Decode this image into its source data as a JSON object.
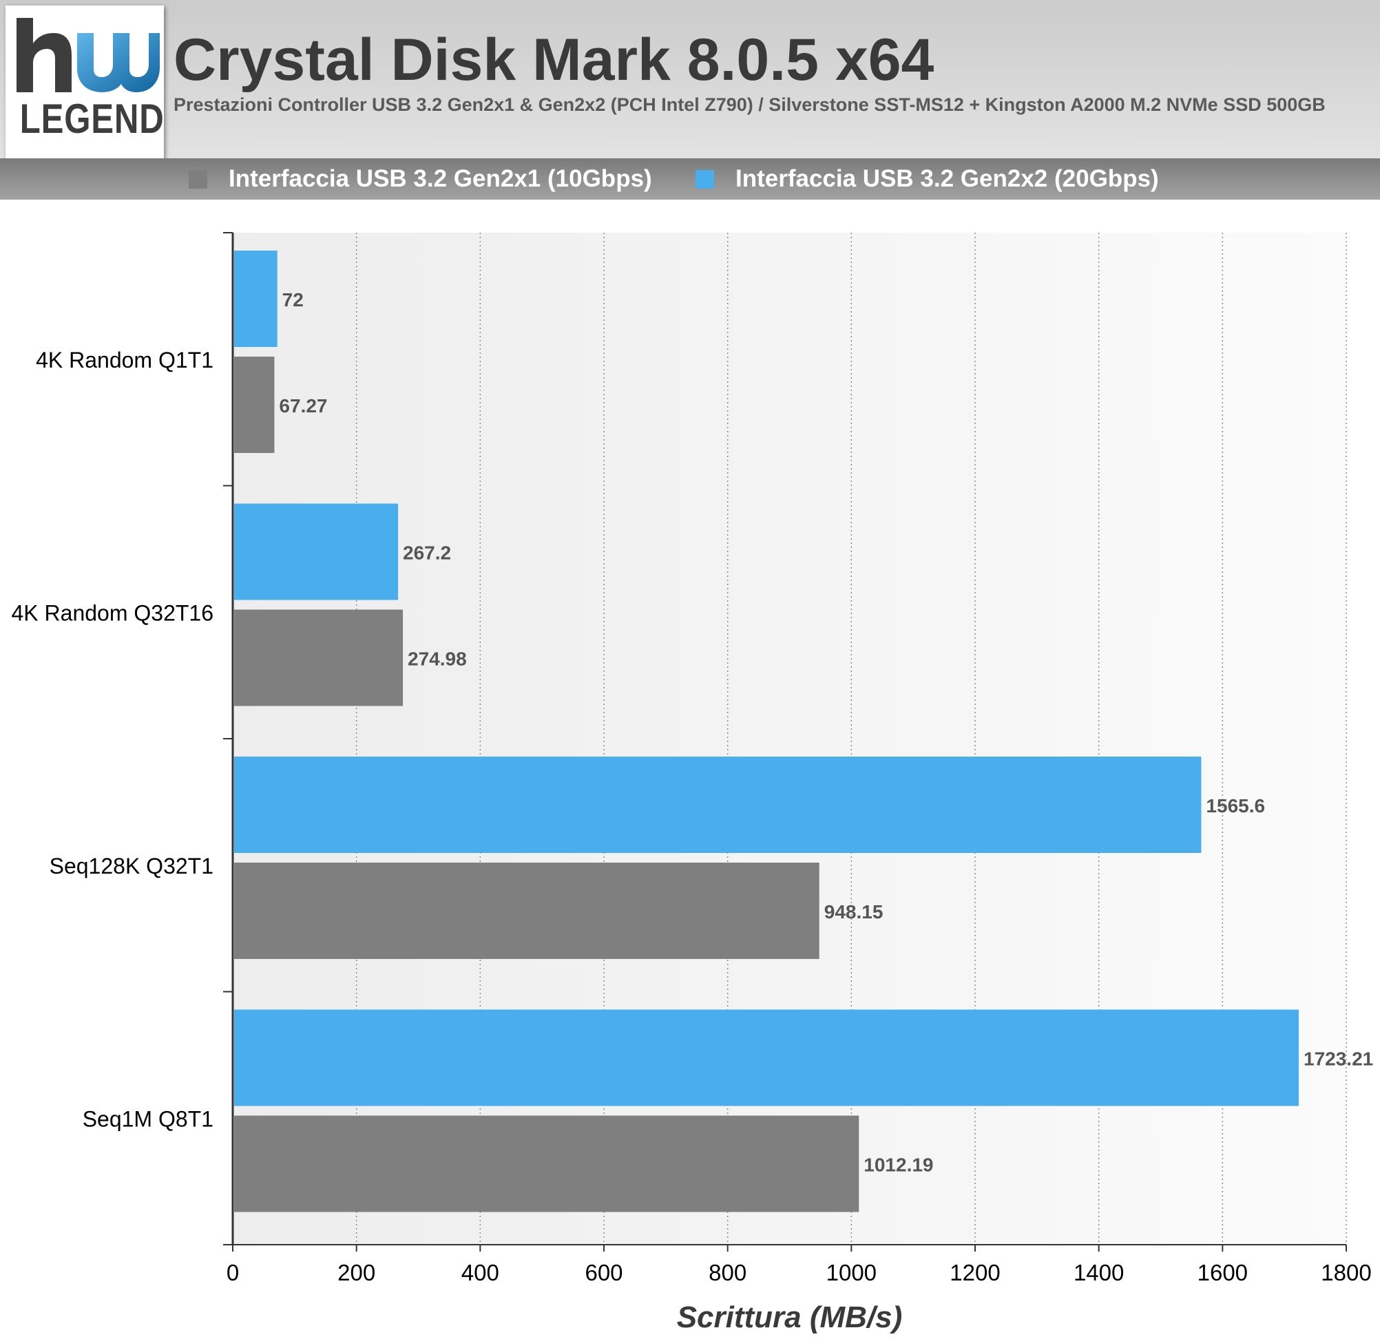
{
  "header": {
    "logo_text": "LEGEND",
    "title": "Crystal Disk Mark 8.0.5 x64",
    "subtitle": "Prestazioni Controller USB 3.2 Gen2x1 & Gen2x2 (PCH Intel Z790) / Silverstone SST-MS12 + Kingston A2000 M.2 NVMe SSD 500GB"
  },
  "colors": {
    "gen2x1": "#7f7f7f",
    "gen2x2": "#4aaded",
    "logo_blue": "#1c7fc1"
  },
  "legend": [
    {
      "label": "Interfaccia USB 3.2 Gen2x1 (10Gbps)",
      "color": "#7f7f7f"
    },
    {
      "label": "Interfaccia USB 3.2 Gen2x2 (20Gbps)",
      "color": "#4aaded"
    }
  ],
  "chart_data": {
    "type": "bar",
    "orientation": "horizontal",
    "categories": [
      "4K Random Q1T1",
      "4K Random Q32T16",
      "Seq128K Q32T1",
      "Seq1M Q8T1"
    ],
    "series": [
      {
        "name": "Interfaccia USB 3.2 Gen2x2 (20Gbps)",
        "color": "#4aaded",
        "values": [
          72,
          267.2,
          1565.6,
          1723.21
        ],
        "labels": [
          "72",
          "267.2",
          "1565.6",
          "1723.21"
        ]
      },
      {
        "name": "Interfaccia USB 3.2 Gen2x1 (10Gbps)",
        "color": "#7f7f7f",
        "values": [
          67.27,
          274.98,
          948.15,
          1012.19
        ],
        "labels": [
          "67.27",
          "274.98",
          "948.15",
          "1012.19"
        ]
      }
    ],
    "xlabel": "Scrittura (MB/s)",
    "ylabel": "",
    "xlim": [
      0,
      1800
    ],
    "xticks": [
      "0",
      "200",
      "400",
      "600",
      "800",
      "1000",
      "1200",
      "1400",
      "1600",
      "1800"
    ],
    "grid": "vertical dotted",
    "legend_position": "top"
  }
}
